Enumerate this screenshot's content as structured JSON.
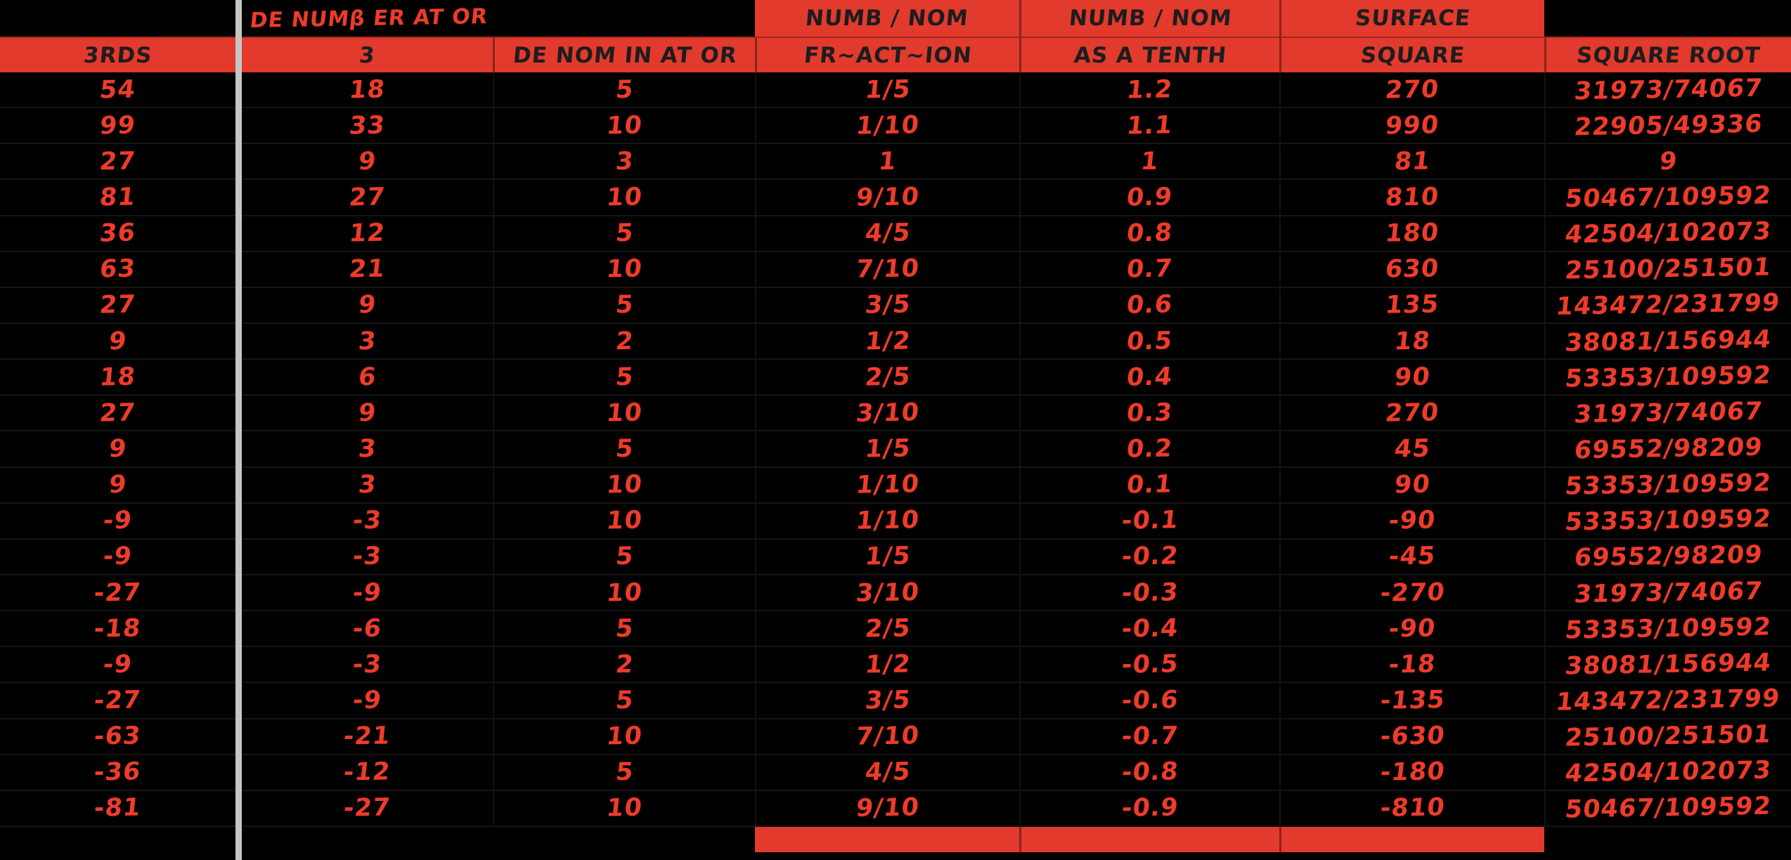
{
  "app": {
    "description": "Spreadsheet grid, black background with red accent bands and red handwritten-marker figures",
    "colors": {
      "background": "#000000",
      "band_red": "#e23a2d",
      "ink_red": "#ee3b2a",
      "header_ink": "#1d1d1d",
      "pane_divider_gray": "#c6c6c6",
      "gridline": "#141414"
    }
  },
  "table": {
    "columns": [
      {
        "id": "thirds",
        "header_top": "",
        "header": "3RDS"
      },
      {
        "id": "numerator",
        "header_top": "DE NUMβ ER AT OR",
        "header": "3"
      },
      {
        "id": "denominator",
        "header_top": "",
        "header": "DE NOM IN AT OR"
      },
      {
        "id": "fraction",
        "header_top": "NUMB / NOM",
        "header": "FR~ACT~ION"
      },
      {
        "id": "tenth",
        "header_top": "NUMB / NOM",
        "header": "AS A TENTH"
      },
      {
        "id": "square",
        "header_top": "SURFACE",
        "header": "SQUARE"
      },
      {
        "id": "sqrt",
        "header_top": "",
        "header": "SQUARE ROOT"
      }
    ],
    "rows": [
      [
        "54",
        "18",
        "5",
        "1/5",
        "1.2",
        "270",
        "31973/74067"
      ],
      [
        "99",
        "33",
        "10",
        "1/10",
        "1.1",
        "990",
        "22905/49336"
      ],
      [
        "27",
        "9",
        "3",
        "1",
        "1",
        "81",
        "9"
      ],
      [
        "81",
        "27",
        "10",
        "9/10",
        "0.9",
        "810",
        "50467/109592"
      ],
      [
        "36",
        "12",
        "5",
        "4/5",
        "0.8",
        "180",
        "42504/102073"
      ],
      [
        "63",
        "21",
        "10",
        "7/10",
        "0.7",
        "630",
        "25100/251501"
      ],
      [
        "27",
        "9",
        "5",
        "3/5",
        "0.6",
        "135",
        "143472/231799"
      ],
      [
        "9",
        "3",
        "2",
        "1/2",
        "0.5",
        "18",
        "38081/156944"
      ],
      [
        "18",
        "6",
        "5",
        "2/5",
        "0.4",
        "90",
        "53353/109592"
      ],
      [
        "27",
        "9",
        "10",
        "3/10",
        "0.3",
        "270",
        "31973/74067"
      ],
      [
        "9",
        "3",
        "5",
        "1/5",
        "0.2",
        "45",
        "69552/98209"
      ],
      [
        "9",
        "3",
        "10",
        "1/10",
        "0.1",
        "90",
        "53353/109592"
      ],
      [
        "-9",
        "-3",
        "10",
        "1/10",
        "-0.1",
        "-90",
        "53353/109592"
      ],
      [
        "-9",
        "-3",
        "5",
        "1/5",
        "-0.2",
        "-45",
        "69552/98209"
      ],
      [
        "-27",
        "-9",
        "10",
        "3/10",
        "-0.3",
        "-270",
        "31973/74067"
      ],
      [
        "-18",
        "-6",
        "5",
        "2/5",
        "-0.4",
        "-90",
        "53353/109592"
      ],
      [
        "-9",
        "-3",
        "2",
        "1/2",
        "-0.5",
        "-18",
        "38081/156944"
      ],
      [
        "-27",
        "-9",
        "5",
        "3/5",
        "-0.6",
        "-135",
        "143472/231799"
      ],
      [
        "-63",
        "-21",
        "10",
        "7/10",
        "-0.7",
        "-630",
        "25100/251501"
      ],
      [
        "-36",
        "-12",
        "5",
        "4/5",
        "-0.8",
        "-180",
        "42504/102073"
      ],
      [
        "-81",
        "-27",
        "10",
        "9/10",
        "-0.9",
        "-810",
        "50467/109592"
      ]
    ]
  }
}
